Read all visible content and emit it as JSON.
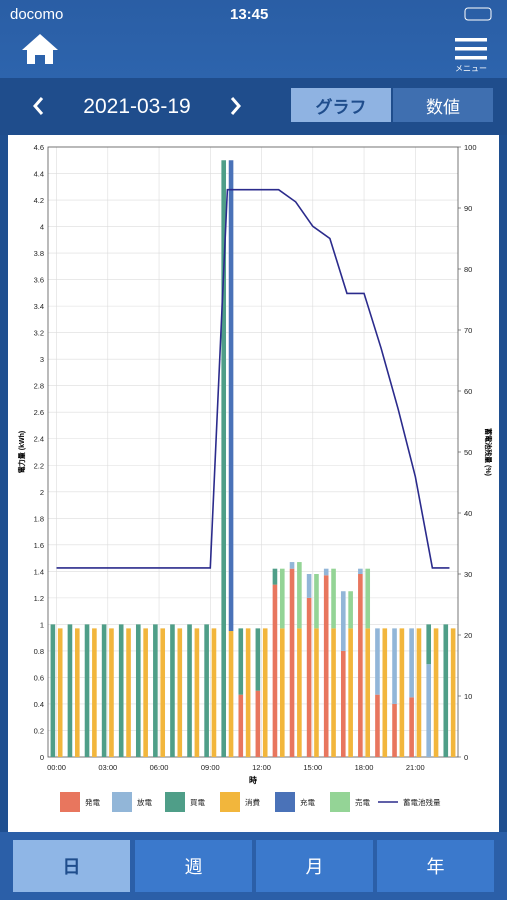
{
  "status": {
    "carrier": "docomo",
    "time": "13:45"
  },
  "header": {
    "menu": "メニュー"
  },
  "date": "2021-03-19",
  "view_tabs": [
    "グラフ",
    "数値"
  ],
  "period_tabs": [
    "日",
    "週",
    "月",
    "年"
  ],
  "chart_data": {
    "type": "bar",
    "x": [
      0,
      1,
      2,
      3,
      4,
      5,
      6,
      7,
      8,
      9,
      10,
      11,
      12,
      13,
      14,
      15,
      16,
      17,
      18,
      19,
      20,
      21,
      22,
      23
    ],
    "xlim": [
      -0.5,
      23.5
    ],
    "xticks": [
      {
        "value": 0,
        "label": "00:00"
      },
      {
        "value": 3,
        "label": "03:00"
      },
      {
        "value": 6,
        "label": "06:00"
      },
      {
        "value": 9,
        "label": "09:00"
      },
      {
        "value": 12,
        "label": "12:00"
      },
      {
        "value": 15,
        "label": "15:00"
      },
      {
        "value": 18,
        "label": "18:00"
      },
      {
        "value": 21,
        "label": "21:00"
      }
    ],
    "xlabel": "時",
    "ylabel": "電力量 (kWh)",
    "y2label": "蓄電池残量 (%)",
    "ylim": [
      0,
      4.6
    ],
    "yticks": [
      0,
      0.2,
      0.4,
      0.6,
      0.8,
      1,
      1.2,
      1.4,
      1.6,
      1.8,
      2,
      2.2,
      2.4,
      2.6,
      2.8,
      3,
      3.2,
      3.4,
      3.6,
      3.8,
      4,
      4.2,
      4.4,
      4.6
    ],
    "y2lim": [
      0,
      100
    ],
    "y2ticks": [
      0,
      10,
      20,
      30,
      40,
      50,
      60,
      70,
      80,
      90,
      100
    ],
    "grid": true,
    "series": [
      {
        "name": "発電",
        "color": "#e8765e",
        "stack": 1,
        "values": [
          0,
          0,
          0,
          0,
          0,
          0,
          0,
          0,
          0,
          0,
          0,
          0.47,
          0.5,
          1.3,
          1.42,
          1.2,
          1.37,
          0.8,
          1.38,
          0.47,
          0.4,
          0.45,
          0,
          0
        ]
      },
      {
        "name": "放電",
        "color": "#92b6d8",
        "stack": 1,
        "values": [
          0,
          0,
          0,
          0,
          0,
          0,
          0,
          0,
          0,
          0,
          0,
          0,
          0,
          0,
          0.05,
          0.18,
          0.05,
          0.45,
          0.04,
          0.5,
          0.57,
          0.52,
          0.7,
          0
        ]
      },
      {
        "name": "買電",
        "color": "#4f9e88",
        "stack": 1,
        "values": [
          1,
          1,
          1,
          1,
          1,
          1,
          1,
          1,
          1,
          1,
          4.5,
          0.5,
          0.47,
          0.12,
          0,
          0,
          0,
          0,
          0,
          0,
          0,
          0,
          0.3,
          1
        ]
      },
      {
        "name": "消費",
        "color": "#f2b63c",
        "stack": 2,
        "values": [
          0.97,
          0.97,
          0.97,
          0.97,
          0.97,
          0.97,
          0.97,
          0.97,
          0.97,
          0.97,
          0.95,
          0.97,
          0.97,
          0.97,
          0.97,
          0.97,
          0.97,
          0.97,
          0.97,
          0.97,
          0.97,
          0.97,
          0.97,
          0.97
        ]
      },
      {
        "name": "充電",
        "color": "#4a72b8",
        "stack": 2,
        "values": [
          0,
          0,
          0,
          0,
          0,
          0,
          0,
          0,
          0,
          0,
          3.55,
          0,
          0,
          0,
          0,
          0,
          0,
          0,
          0,
          0,
          0,
          0,
          0,
          0
        ]
      },
      {
        "name": "売電",
        "color": "#94d496",
        "stack": 2,
        "values": [
          0,
          0,
          0,
          0,
          0,
          0,
          0,
          0,
          0,
          0,
          0,
          0,
          0,
          0.45,
          0.5,
          0.41,
          0.45,
          0.28,
          0.45,
          0,
          0,
          0,
          0,
          0
        ]
      },
      {
        "name": "蓄電池残量",
        "color": "#2b2b8c",
        "type": "line",
        "axis": "y2",
        "values": [
          31,
          31,
          31,
          31,
          31,
          31,
          31,
          31,
          31,
          31,
          93,
          93,
          93,
          93,
          91,
          87,
          85,
          76,
          76,
          67,
          57,
          46,
          31,
          31
        ]
      }
    ]
  }
}
